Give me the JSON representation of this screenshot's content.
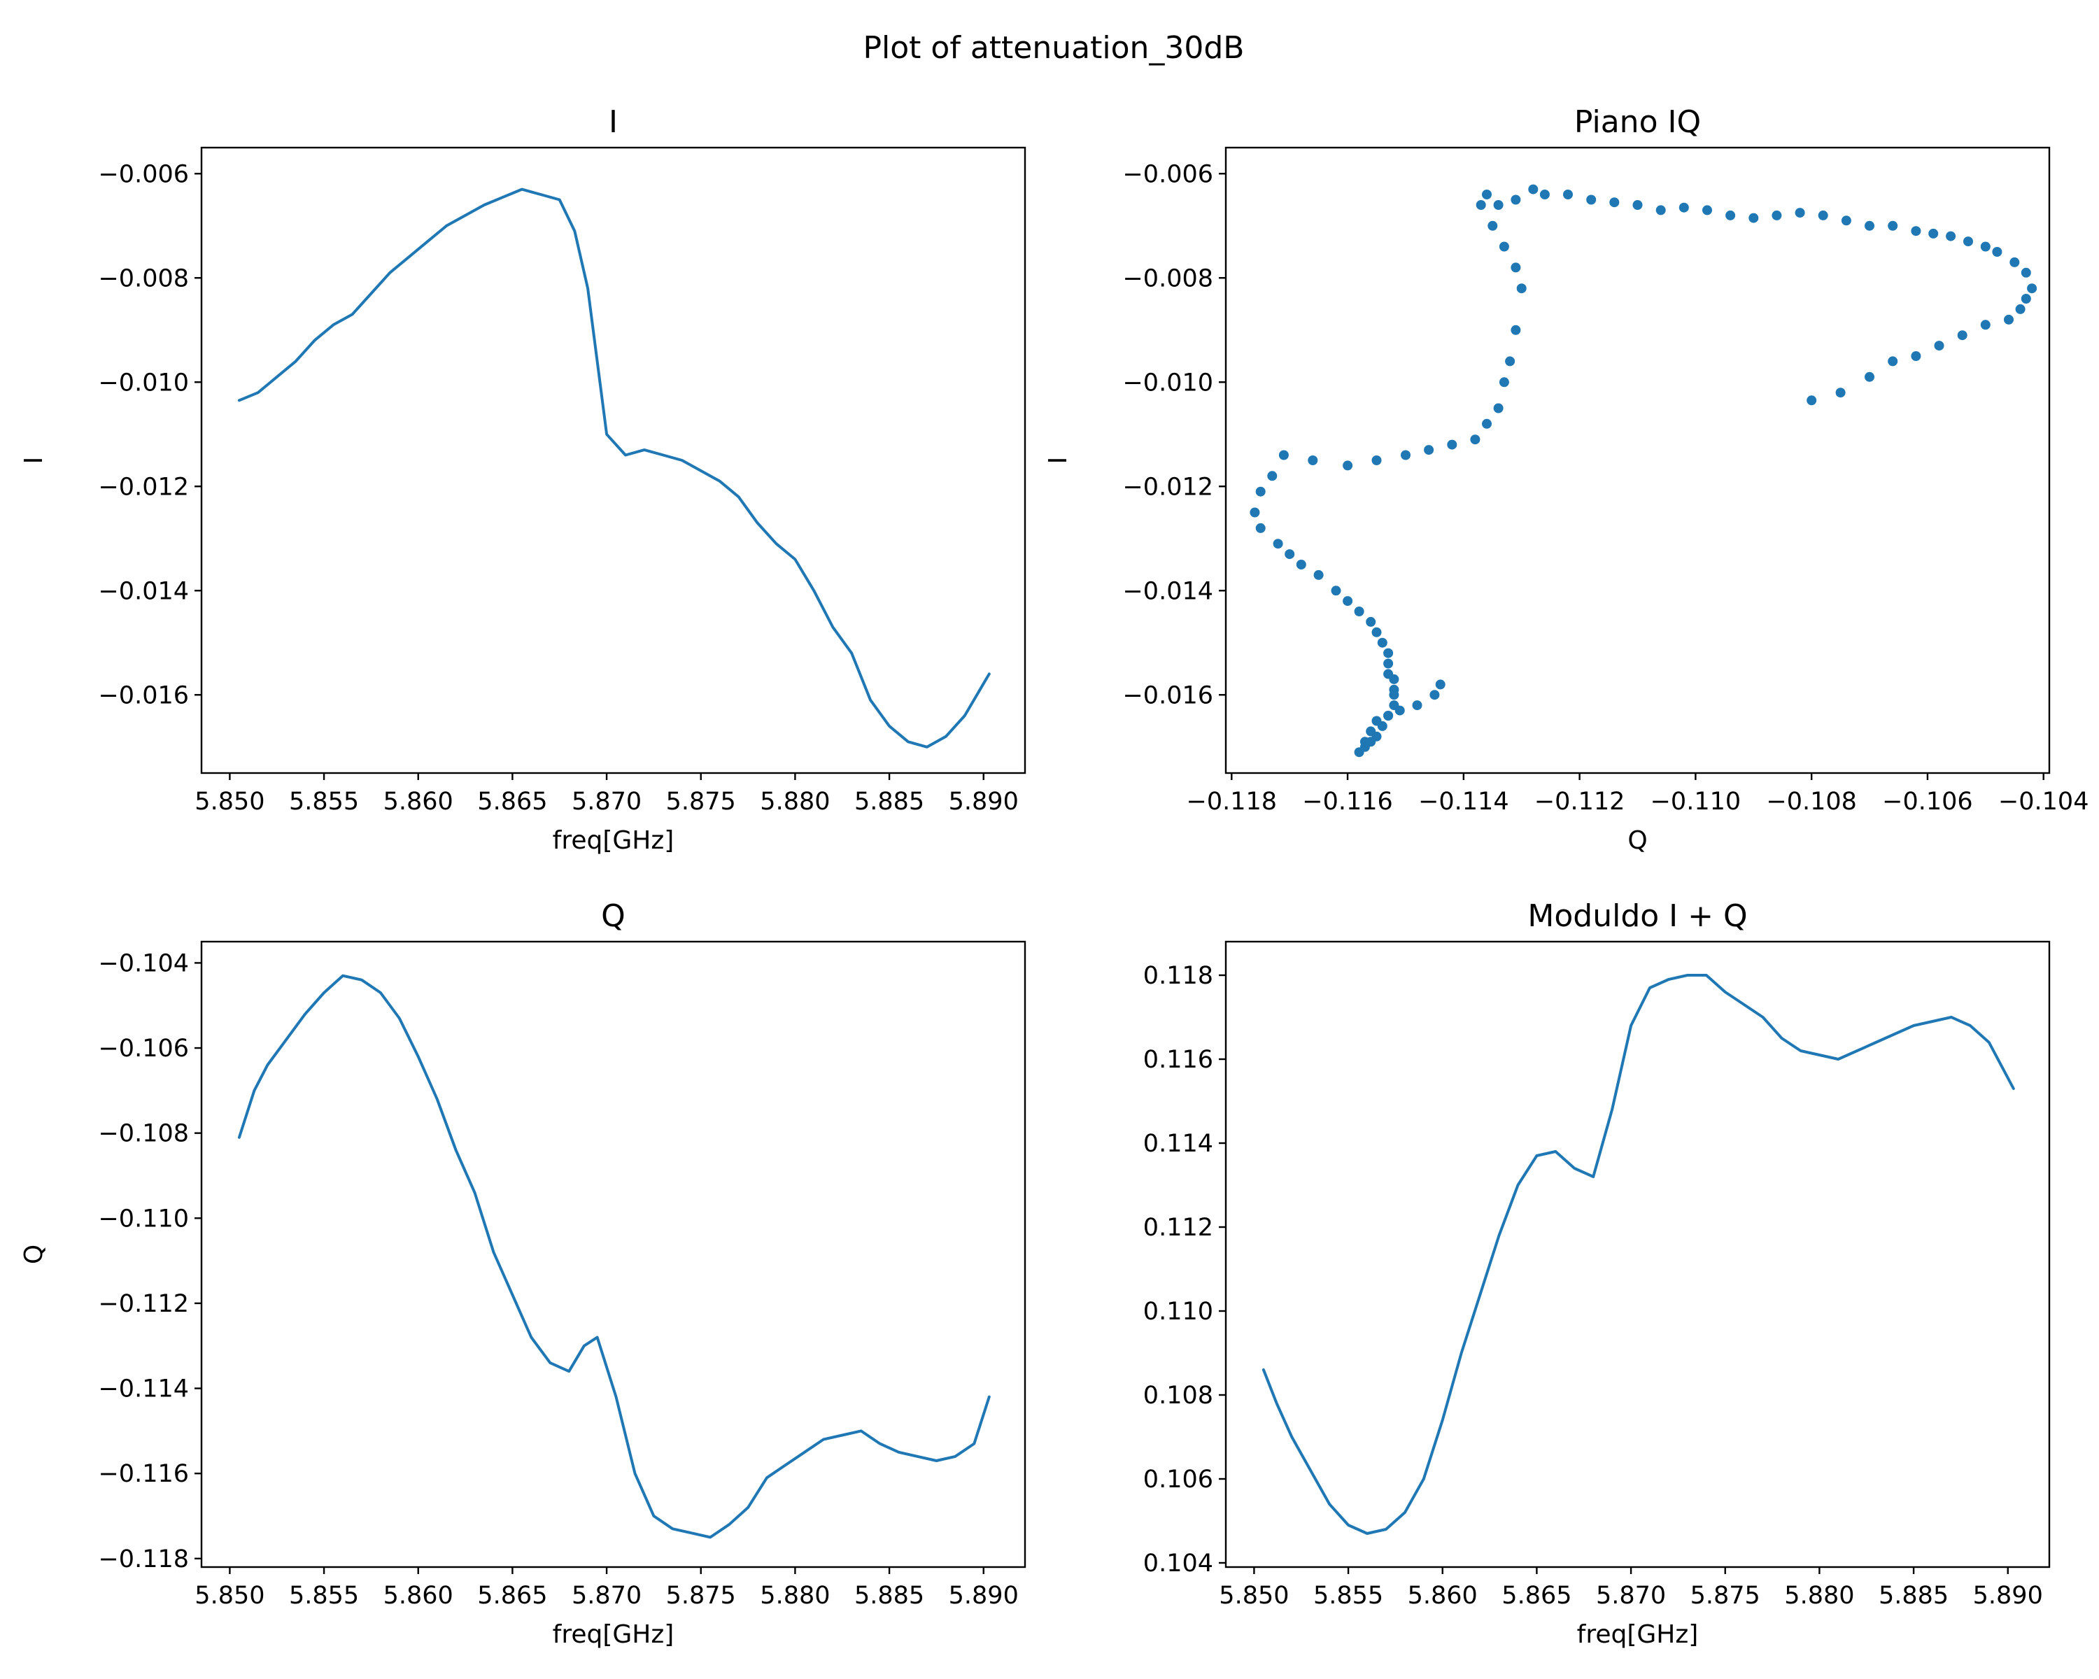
{
  "figure": {
    "title": "Plot of attenuation_30dB",
    "line_color": "#1f77b4"
  },
  "chart_data": [
    {
      "id": "i",
      "type": "line",
      "title": "I",
      "xlabel": "freq[GHz]",
      "ylabel": "I",
      "xlim": [
        5.8485,
        5.8922
      ],
      "ylim": [
        -0.0175,
        -0.0055
      ],
      "xticks": [
        "5.850",
        "5.855",
        "5.860",
        "5.865",
        "5.870",
        "5.875",
        "5.880",
        "5.885",
        "5.890"
      ],
      "yticks": [
        "−0.006",
        "−0.008",
        "−0.010",
        "−0.012",
        "−0.014",
        "−0.016"
      ],
      "grid": false,
      "series": [
        {
          "x": [
            5.8505,
            5.8515,
            5.8525,
            5.8535,
            5.8545,
            5.8555,
            5.8565,
            5.8575,
            5.8585,
            5.8595,
            5.8605,
            5.8615,
            5.8625,
            5.8635,
            5.8645,
            5.8655,
            5.8665,
            5.8675,
            5.8683,
            5.869,
            5.87,
            5.871,
            5.872,
            5.873,
            5.874,
            5.875,
            5.876,
            5.877,
            5.878,
            5.879,
            5.88,
            5.881,
            5.882,
            5.883,
            5.884,
            5.885,
            5.886,
            5.887,
            5.888,
            5.889,
            5.8903
          ],
          "y": [
            -0.01035,
            -0.0102,
            -0.0099,
            -0.0096,
            -0.0092,
            -0.0089,
            -0.0087,
            -0.0083,
            -0.0079,
            -0.0076,
            -0.0073,
            -0.007,
            -0.0068,
            -0.0066,
            -0.00645,
            -0.0063,
            -0.0064,
            -0.0065,
            -0.0071,
            -0.0082,
            -0.011,
            -0.0114,
            -0.0113,
            -0.0114,
            -0.0115,
            -0.0117,
            -0.0119,
            -0.0122,
            -0.0127,
            -0.0131,
            -0.0134,
            -0.014,
            -0.0147,
            -0.0152,
            -0.0161,
            -0.0166,
            -0.0169,
            -0.017,
            -0.0168,
            -0.0164,
            -0.0156
          ]
        }
      ]
    },
    {
      "id": "iq",
      "type": "scatter",
      "title": "Piano IQ",
      "xlabel": "Q",
      "ylabel": "I",
      "xlim": [
        -0.1181,
        -0.1039
      ],
      "ylim": [
        -0.0175,
        -0.0055
      ],
      "xticks": [
        "−0.118",
        "−0.116",
        "−0.114",
        "−0.112",
        "−0.110",
        "−0.108",
        "−0.106",
        "−0.104"
      ],
      "yticks": [
        "−0.006",
        "−0.008",
        "−0.010",
        "−0.012",
        "−0.014",
        "−0.016"
      ],
      "grid": false,
      "series": [
        {
          "x": [
            -0.108,
            -0.1075,
            -0.107,
            -0.1066,
            -0.1062,
            -0.1058,
            -0.1054,
            -0.105,
            -0.1046,
            -0.1044,
            -0.1043,
            -0.1042,
            -0.1043,
            -0.1045,
            -0.1048,
            -0.105,
            -0.1053,
            -0.1056,
            -0.1059,
            -0.1062,
            -0.1066,
            -0.107,
            -0.1074,
            -0.1078,
            -0.1082,
            -0.1086,
            -0.109,
            -0.1094,
            -0.1098,
            -0.1102,
            -0.1106,
            -0.111,
            -0.1114,
            -0.1118,
            -0.1122,
            -0.1126,
            -0.1128,
            -0.1131,
            -0.1134,
            -0.1136,
            -0.1137,
            -0.1135,
            -0.1133,
            -0.1131,
            -0.113,
            -0.1131,
            -0.1132,
            -0.1133,
            -0.1134,
            -0.1136,
            -0.1138,
            -0.1142,
            -0.1146,
            -0.115,
            -0.1155,
            -0.116,
            -0.1166,
            -0.1171,
            -0.1173,
            -0.1175,
            -0.1176,
            -0.1175,
            -0.1172,
            -0.117,
            -0.1168,
            -0.1165,
            -0.1162,
            -0.116,
            -0.1158,
            -0.1156,
            -0.1155,
            -0.1154,
            -0.1153,
            -0.1153,
            -0.1153,
            -0.1152,
            -0.1152,
            -0.1152,
            -0.1152,
            -0.1153,
            -0.1154,
            -0.1155,
            -0.1156,
            -0.1157,
            -0.1158,
            -0.1157,
            -0.1156,
            -0.1155,
            -0.1153,
            -0.1151,
            -0.1148,
            -0.1145,
            -0.1144
          ],
          "y": [
            -0.01035,
            -0.0102,
            -0.0099,
            -0.0096,
            -0.0095,
            -0.0093,
            -0.0091,
            -0.0089,
            -0.0088,
            -0.0086,
            -0.0084,
            -0.0082,
            -0.0079,
            -0.0077,
            -0.0075,
            -0.0074,
            -0.0073,
            -0.0072,
            -0.00715,
            -0.0071,
            -0.007,
            -0.007,
            -0.0069,
            -0.0068,
            -0.00675,
            -0.0068,
            -0.00685,
            -0.0068,
            -0.0067,
            -0.00665,
            -0.0067,
            -0.0066,
            -0.00655,
            -0.0065,
            -0.0064,
            -0.0064,
            -0.0063,
            -0.0065,
            -0.0066,
            -0.0064,
            -0.0066,
            -0.007,
            -0.0074,
            -0.0078,
            -0.0082,
            -0.009,
            -0.0096,
            -0.01,
            -0.0105,
            -0.0108,
            -0.0111,
            -0.0112,
            -0.0113,
            -0.0114,
            -0.0115,
            -0.0116,
            -0.0115,
            -0.0114,
            -0.0118,
            -0.0121,
            -0.0125,
            -0.0128,
            -0.0131,
            -0.0133,
            -0.0135,
            -0.0137,
            -0.014,
            -0.0142,
            -0.0144,
            -0.0146,
            -0.0148,
            -0.015,
            -0.0152,
            -0.0154,
            -0.0156,
            -0.0157,
            -0.0159,
            -0.016,
            -0.0162,
            -0.0164,
            -0.0166,
            -0.0168,
            -0.0169,
            -0.017,
            -0.0171,
            -0.0169,
            -0.0167,
            -0.0165,
            -0.0164,
            -0.0163,
            -0.0162,
            -0.016,
            -0.0158
          ]
        }
      ]
    },
    {
      "id": "q",
      "type": "line",
      "title": "Q",
      "xlabel": "freq[GHz]",
      "ylabel": "Q",
      "xlim": [
        5.8485,
        5.8922
      ],
      "ylim": [
        -0.1182,
        -0.1035
      ],
      "xticks": [
        "5.850",
        "5.855",
        "5.860",
        "5.865",
        "5.870",
        "5.875",
        "5.880",
        "5.885",
        "5.890"
      ],
      "yticks": [
        "−0.104",
        "−0.106",
        "−0.108",
        "−0.110",
        "−0.112",
        "−0.114",
        "−0.116",
        "−0.118"
      ],
      "grid": false,
      "series": [
        {
          "x": [
            5.8505,
            5.8513,
            5.852,
            5.853,
            5.854,
            5.855,
            5.856,
            5.857,
            5.858,
            5.859,
            5.86,
            5.861,
            5.862,
            5.863,
            5.864,
            5.865,
            5.866,
            5.867,
            5.868,
            5.8688,
            5.8695,
            5.8705,
            5.8715,
            5.8725,
            5.8735,
            5.8745,
            5.8755,
            5.8765,
            5.8775,
            5.8785,
            5.8795,
            5.8805,
            5.8815,
            5.8825,
            5.8835,
            5.8845,
            5.8855,
            5.8865,
            5.8875,
            5.8885,
            5.8895,
            5.8903
          ],
          "y": [
            -0.1081,
            -0.107,
            -0.1064,
            -0.1058,
            -0.1052,
            -0.1047,
            -0.1043,
            -0.1044,
            -0.1047,
            -0.1053,
            -0.1062,
            -0.1072,
            -0.1084,
            -0.1094,
            -0.1108,
            -0.1118,
            -0.1128,
            -0.1134,
            -0.1136,
            -0.113,
            -0.1128,
            -0.1142,
            -0.116,
            -0.117,
            -0.1173,
            -0.1174,
            -0.1175,
            -0.1172,
            -0.1168,
            -0.1161,
            -0.1158,
            -0.1155,
            -0.1152,
            -0.1151,
            -0.115,
            -0.1153,
            -0.1155,
            -0.1156,
            -0.1157,
            -0.1156,
            -0.1153,
            -0.1142
          ]
        }
      ]
    },
    {
      "id": "mod",
      "type": "line",
      "title": "Moduldo I + Q",
      "xlabel": "freq[GHz]",
      "ylabel": "",
      "xlim": [
        5.8485,
        5.8922
      ],
      "ylim": [
        0.1039,
        0.1188
      ],
      "xticks": [
        "5.850",
        "5.855",
        "5.860",
        "5.865",
        "5.870",
        "5.875",
        "5.880",
        "5.885",
        "5.890"
      ],
      "yticks": [
        "0.118",
        "0.116",
        "0.114",
        "0.112",
        "0.110",
        "0.108",
        "0.106",
        "0.104"
      ],
      "grid": false,
      "series": [
        {
          "x": [
            5.8505,
            5.8512,
            5.852,
            5.853,
            5.854,
            5.855,
            5.856,
            5.857,
            5.858,
            5.859,
            5.86,
            5.861,
            5.862,
            5.863,
            5.864,
            5.865,
            5.866,
            5.867,
            5.868,
            5.869,
            5.87,
            5.871,
            5.872,
            5.873,
            5.874,
            5.875,
            5.876,
            5.877,
            5.878,
            5.879,
            5.88,
            5.881,
            5.882,
            5.883,
            5.884,
            5.885,
            5.886,
            5.887,
            5.888,
            5.889,
            5.8903
          ],
          "y": [
            0.1086,
            0.1078,
            0.107,
            0.1062,
            0.1054,
            0.1049,
            0.1047,
            0.1048,
            0.1052,
            0.106,
            0.1074,
            0.109,
            0.1104,
            0.1118,
            0.113,
            0.1137,
            0.1138,
            0.1134,
            0.1132,
            0.1148,
            0.1168,
            0.1177,
            0.1179,
            0.118,
            0.118,
            0.1176,
            0.1173,
            0.117,
            0.1165,
            0.1162,
            0.1161,
            0.116,
            0.1162,
            0.1164,
            0.1166,
            0.1168,
            0.1169,
            0.117,
            0.1168,
            0.1164,
            0.1153
          ]
        }
      ]
    }
  ]
}
